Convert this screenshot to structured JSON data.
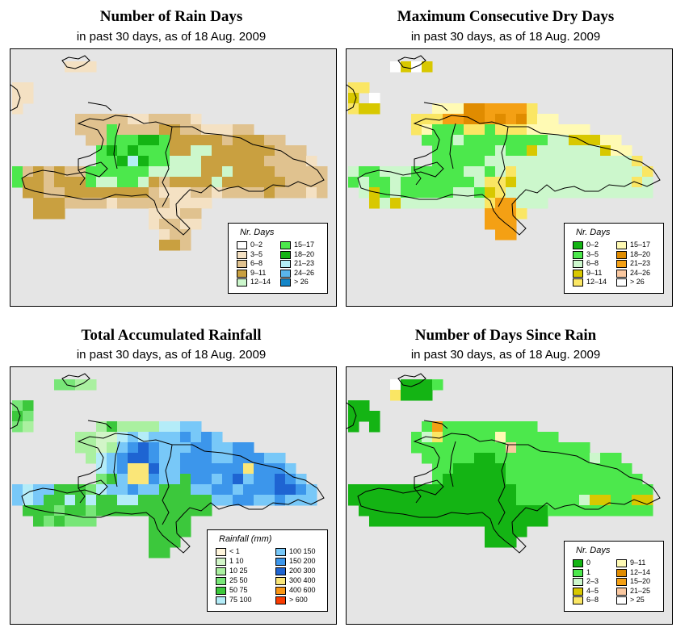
{
  "panels": [
    {
      "id": "rain-days",
      "title": "Number of Rain Days",
      "subtitle": "in past 30 days, as of  18 Aug. 2009",
      "legend": {
        "title": "Nr. Days",
        "items": [
          {
            "label": "0–2",
            "color": "#ffffff"
          },
          {
            "label": "3–5",
            "color": "#f4e1c3"
          },
          {
            "label": "6–8",
            "color": "#e0c28f"
          },
          {
            "label": "9–11",
            "color": "#c9a040"
          },
          {
            "label": "12–14",
            "color": "#ccf7cc"
          },
          {
            "label": "15–17",
            "color": "#4ce84c"
          },
          {
            "label": "18–20",
            "color": "#14b414"
          },
          {
            "label": "21–23",
            "color": "#b4eef4"
          },
          {
            "label": "24–26",
            "color": "#5ab4ea"
          },
          {
            "label": "> 26",
            "color": "#1486c8"
          }
        ]
      }
    },
    {
      "id": "dry-days",
      "title": "Maximum Consecutive Dry Days",
      "subtitle": "in past 30 days, as of  18 Aug. 2009",
      "legend": {
        "title": "Nr. Days",
        "items": [
          {
            "label": "0–2",
            "color": "#14b414"
          },
          {
            "label": "3–5",
            "color": "#4ce84c"
          },
          {
            "label": "6–8",
            "color": "#ccf7cc"
          },
          {
            "label": "9–11",
            "color": "#d8c800"
          },
          {
            "label": "12–14",
            "color": "#fae664"
          },
          {
            "label": "15–17",
            "color": "#fffab4"
          },
          {
            "label": "18–20",
            "color": "#e08c00"
          },
          {
            "label": "21–23",
            "color": "#f4a014"
          },
          {
            "label": "24–26",
            "color": "#fac8a0"
          },
          {
            "label": "> 26",
            "color": "#ffffff"
          }
        ]
      }
    },
    {
      "id": "rainfall",
      "title": "Total Accumulated Rainfall",
      "subtitle": "in past 30 days, as of  18 Aug. 2009",
      "legend": {
        "title": "Rainfall (mm)",
        "items": [
          {
            "label": "< 1",
            "color": "#fff5dc"
          },
          {
            "label": "1   10",
            "color": "#d2f5c8"
          },
          {
            "label": "10   25",
            "color": "#aaf0a0"
          },
          {
            "label": "25   50",
            "color": "#78e678"
          },
          {
            "label": "50   75",
            "color": "#3cc83c"
          },
          {
            "label": "75   100",
            "color": "#b4ecf8"
          },
          {
            "label": "100   150",
            "color": "#78c8f8"
          },
          {
            "label": "150   200",
            "color": "#3c96eb"
          },
          {
            "label": "200   300",
            "color": "#1e64d2"
          },
          {
            "label": "300   400",
            "color": "#fae678"
          },
          {
            "label": "400   600",
            "color": "#fa9614"
          },
          {
            "label": "> 600",
            "color": "#fa3c00"
          }
        ]
      }
    },
    {
      "id": "days-since",
      "title": "Number of Days Since Rain",
      "subtitle": "in past 30 days, as of  18 Aug. 2009",
      "legend": {
        "title": "Nr. Days",
        "items": [
          {
            "label": "0",
            "color": "#14b414"
          },
          {
            "label": "1",
            "color": "#4ce84c"
          },
          {
            "label": "2–3",
            "color": "#ccf7cc"
          },
          {
            "label": "4–5",
            "color": "#d8c800"
          },
          {
            "label": "6–8",
            "color": "#fae664"
          },
          {
            "label": "9–11",
            "color": "#fffab4"
          },
          {
            "label": "12–14",
            "color": "#e08c00"
          },
          {
            "label": "15–20",
            "color": "#f4a014"
          },
          {
            "label": "21–25",
            "color": "#fac8a0"
          },
          {
            "label": "> 25",
            "color": "#ffffff"
          }
        ]
      }
    }
  ]
}
